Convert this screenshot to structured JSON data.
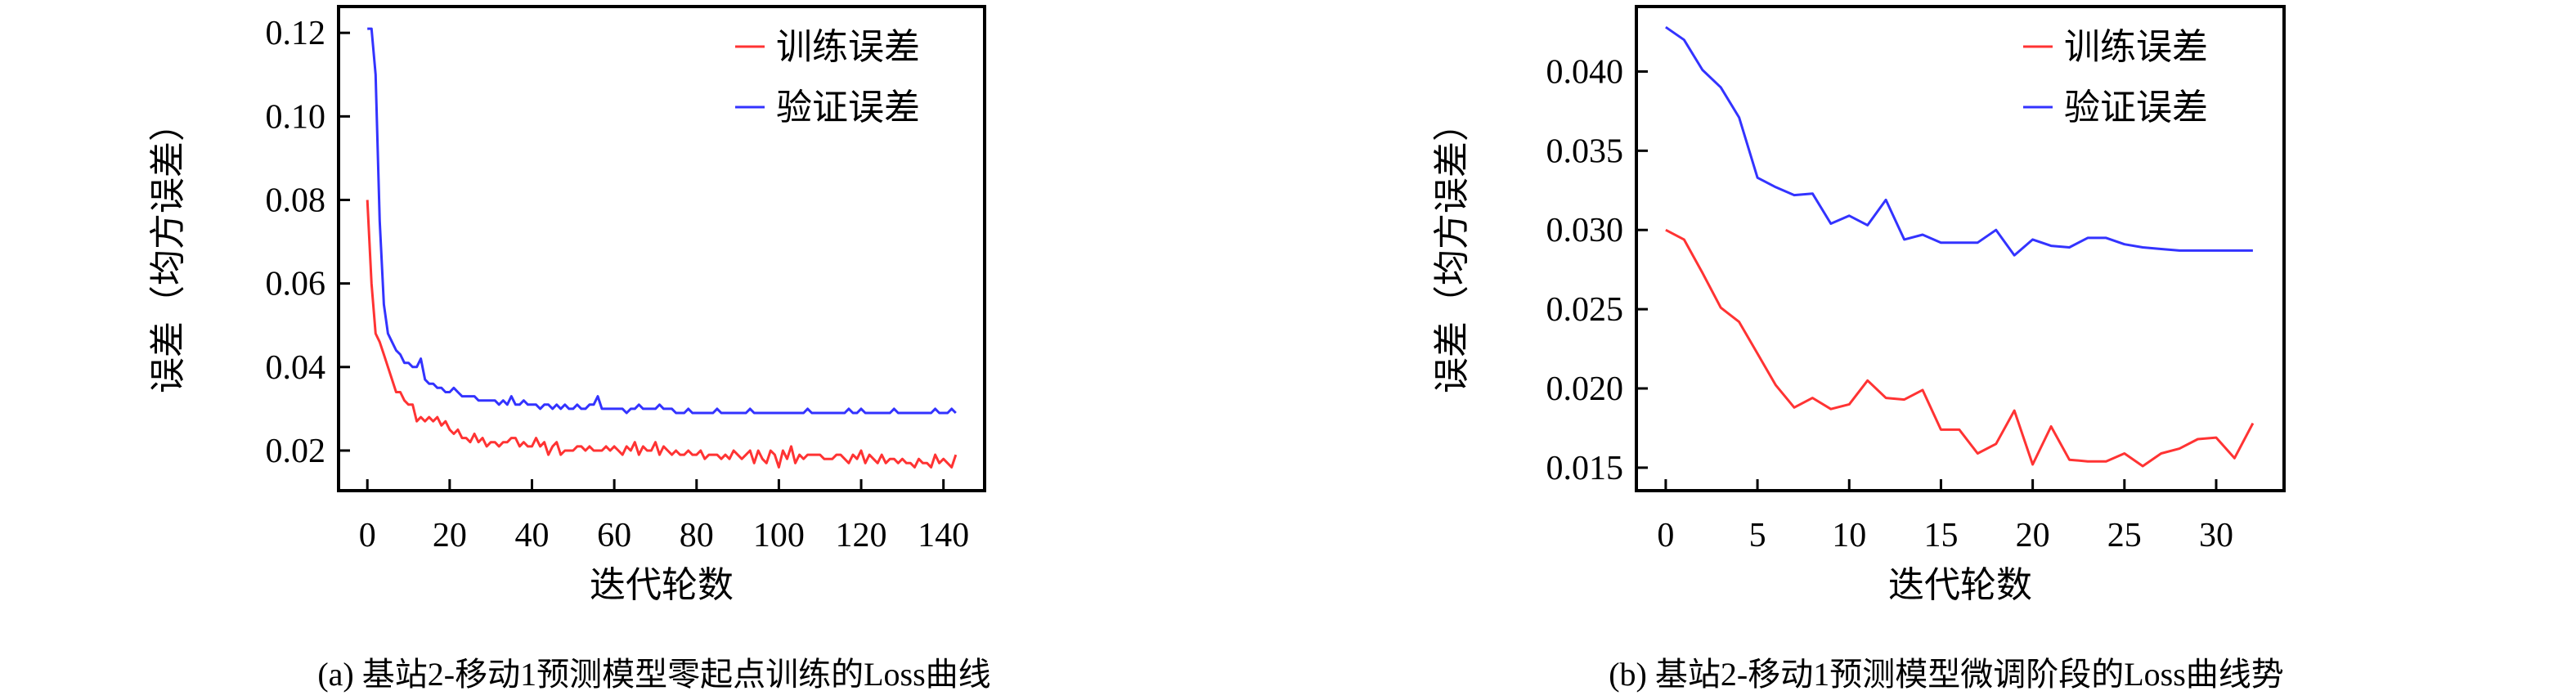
{
  "chart_data": [
    {
      "type": "line",
      "caption": "(a) 基站2-移动1预测模型零起点训练的Loss曲线",
      "xlabel": "迭代轮数",
      "ylabel": "误差（均方误差）",
      "xlim": [
        -7,
        150
      ],
      "ylim": [
        0.0104,
        0.1263
      ],
      "xticks": [
        0,
        20,
        40,
        60,
        80,
        100,
        120,
        140
      ],
      "yticks": [
        0.02,
        0.04,
        0.06,
        0.08,
        0.1,
        0.12
      ],
      "ytick_labels": [
        "0.02",
        "0.04",
        "0.06",
        "0.08",
        "0.10",
        "0.12"
      ],
      "grid": false,
      "legend_position": "top-right",
      "series": [
        {
          "name": "训练误差",
          "color": "#ff3333",
          "values": [
            0.08,
            0.06,
            0.048,
            0.046,
            0.043,
            0.04,
            0.037,
            0.034,
            0.034,
            0.032,
            0.031,
            0.031,
            0.027,
            0.028,
            0.027,
            0.028,
            0.027,
            0.028,
            0.026,
            0.027,
            0.025,
            0.024,
            0.025,
            0.023,
            0.023,
            0.022,
            0.024,
            0.022,
            0.023,
            0.021,
            0.022,
            0.022,
            0.021,
            0.022,
            0.022,
            0.023,
            0.023,
            0.021,
            0.022,
            0.021,
            0.021,
            0.023,
            0.021,
            0.022,
            0.019,
            0.021,
            0.022,
            0.019,
            0.02,
            0.02,
            0.02,
            0.021,
            0.021,
            0.02,
            0.021,
            0.02,
            0.02,
            0.02,
            0.021,
            0.02,
            0.021,
            0.02,
            0.019,
            0.021,
            0.02,
            0.022,
            0.019,
            0.021,
            0.02,
            0.02,
            0.022,
            0.019,
            0.021,
            0.02,
            0.019,
            0.02,
            0.019,
            0.019,
            0.02,
            0.019,
            0.019,
            0.02,
            0.018,
            0.019,
            0.019,
            0.019,
            0.018,
            0.019,
            0.018,
            0.02,
            0.019,
            0.018,
            0.019,
            0.02,
            0.017,
            0.02,
            0.018,
            0.017,
            0.02,
            0.019,
            0.016,
            0.02,
            0.018,
            0.021,
            0.017,
            0.019,
            0.018,
            0.019,
            0.019,
            0.019,
            0.019,
            0.018,
            0.018,
            0.018,
            0.019,
            0.019,
            0.018,
            0.017,
            0.019,
            0.018,
            0.02,
            0.017,
            0.019,
            0.018,
            0.017,
            0.019,
            0.017,
            0.018,
            0.018,
            0.017,
            0.018,
            0.017,
            0.017,
            0.016,
            0.018,
            0.017,
            0.017,
            0.016,
            0.019,
            0.017,
            0.018,
            0.017,
            0.016,
            0.019
          ]
        },
        {
          "name": "验证误差",
          "color": "#3333ff",
          "values": [
            0.121,
            0.121,
            0.11,
            0.075,
            0.055,
            0.048,
            0.046,
            0.044,
            0.043,
            0.041,
            0.041,
            0.04,
            0.04,
            0.042,
            0.037,
            0.036,
            0.036,
            0.035,
            0.035,
            0.034,
            0.034,
            0.035,
            0.034,
            0.033,
            0.033,
            0.033,
            0.033,
            0.032,
            0.032,
            0.032,
            0.032,
            0.032,
            0.031,
            0.032,
            0.031,
            0.033,
            0.031,
            0.031,
            0.032,
            0.031,
            0.031,
            0.031,
            0.03,
            0.031,
            0.031,
            0.03,
            0.031,
            0.03,
            0.031,
            0.03,
            0.03,
            0.031,
            0.03,
            0.03,
            0.031,
            0.031,
            0.033,
            0.03,
            0.03,
            0.03,
            0.03,
            0.03,
            0.03,
            0.029,
            0.03,
            0.03,
            0.031,
            0.03,
            0.03,
            0.03,
            0.03,
            0.031,
            0.03,
            0.03,
            0.03,
            0.029,
            0.029,
            0.029,
            0.03,
            0.029,
            0.029,
            0.029,
            0.029,
            0.029,
            0.029,
            0.03,
            0.029,
            0.029,
            0.029,
            0.029,
            0.029,
            0.029,
            0.029,
            0.03,
            0.029,
            0.029,
            0.029,
            0.029,
            0.029,
            0.029,
            0.029,
            0.029,
            0.029,
            0.029,
            0.029,
            0.029,
            0.029,
            0.03,
            0.029,
            0.029,
            0.029,
            0.029,
            0.029,
            0.029,
            0.029,
            0.029,
            0.029,
            0.03,
            0.029,
            0.029,
            0.03,
            0.029,
            0.029,
            0.029,
            0.029,
            0.029,
            0.029,
            0.029,
            0.03,
            0.029,
            0.029,
            0.029,
            0.029,
            0.029,
            0.029,
            0.029,
            0.029,
            0.029,
            0.03,
            0.029,
            0.029,
            0.029,
            0.03,
            0.029
          ]
        }
      ]
    },
    {
      "type": "line",
      "caption": "(b) 基站2-移动1预测模型微调阶段的Loss曲线势",
      "xlabel": "迭代轮数",
      "ylabel": "误差（均方误差）",
      "xlim": [
        -1.6,
        33.7
      ],
      "ylim": [
        0.01355,
        0.0441
      ],
      "xticks": [
        0,
        5,
        10,
        15,
        20,
        25,
        30
      ],
      "yticks": [
        0.015,
        0.02,
        0.025,
        0.03,
        0.035,
        0.04
      ],
      "ytick_labels": [
        "0.015",
        "0.020",
        "0.025",
        "0.030",
        "0.035",
        "0.040"
      ],
      "grid": false,
      "legend_position": "top-right",
      "series": [
        {
          "name": "训练误差",
          "color": "#ff3333",
          "values": [
            0.03,
            0.0294,
            0.0273,
            0.0251,
            0.0242,
            0.0222,
            0.0202,
            0.0188,
            0.0194,
            0.0187,
            0.019,
            0.0205,
            0.0194,
            0.0193,
            0.0199,
            0.0174,
            0.0174,
            0.0159,
            0.0165,
            0.0186,
            0.0152,
            0.0176,
            0.0155,
            0.0154,
            0.0154,
            0.0159,
            0.0151,
            0.0159,
            0.0162,
            0.0168,
            0.0169,
            0.0156,
            0.0178
          ]
        },
        {
          "name": "验证误差",
          "color": "#3333ff",
          "values": [
            0.0428,
            0.042,
            0.0401,
            0.039,
            0.0371,
            0.0333,
            0.0327,
            0.0322,
            0.0323,
            0.0304,
            0.0309,
            0.0303,
            0.0319,
            0.0294,
            0.0297,
            0.0292,
            0.0292,
            0.0292,
            0.03,
            0.0284,
            0.0294,
            0.029,
            0.0289,
            0.0295,
            0.0295,
            0.0291,
            0.0289,
            0.0288,
            0.0287,
            0.0287,
            0.0287,
            0.0287,
            0.0287
          ]
        }
      ]
    }
  ]
}
